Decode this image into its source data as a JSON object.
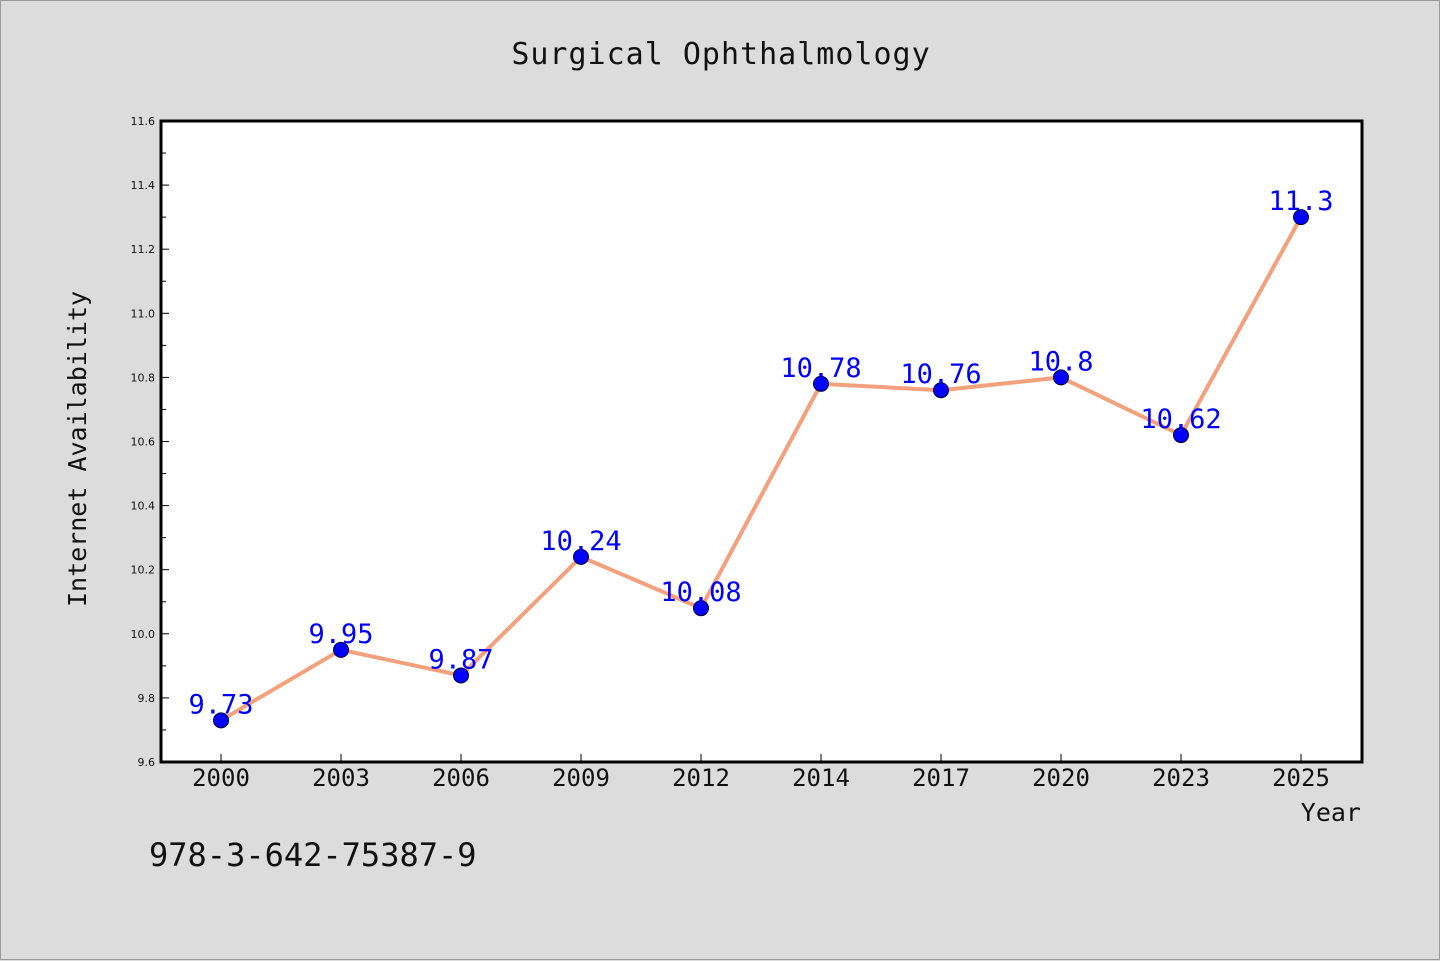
{
  "chart_data": {
    "type": "line",
    "title": "Surgical Ophthalmology",
    "xlabel": "Year",
    "ylabel": "Internet Availability",
    "categories": [
      "2000",
      "2003",
      "2006",
      "2009",
      "2012",
      "2014",
      "2017",
      "2020",
      "2023",
      "2025"
    ],
    "values": [
      9.73,
      9.95,
      9.87,
      10.24,
      10.08,
      10.78,
      10.76,
      10.8,
      10.62,
      11.3
    ],
    "data_labels": [
      "9.73",
      "9.95",
      "9.87",
      "10.24",
      "10.08",
      "10.78",
      "10.76",
      "10.8",
      "10.62",
      "11.3"
    ],
    "ylim": [
      9.6,
      11.6
    ],
    "yticks": [
      "9.6",
      "9.8",
      "10.0",
      "10.2",
      "10.4",
      "10.6",
      "10.8",
      "11.0",
      "11.2",
      "11.4",
      "11.6"
    ],
    "grid": false,
    "line_color": "#f4a07c",
    "marker_color": "#0000ff",
    "label_color": "#0000ff"
  },
  "footer": {
    "code": "978-3-642-75387-9"
  }
}
